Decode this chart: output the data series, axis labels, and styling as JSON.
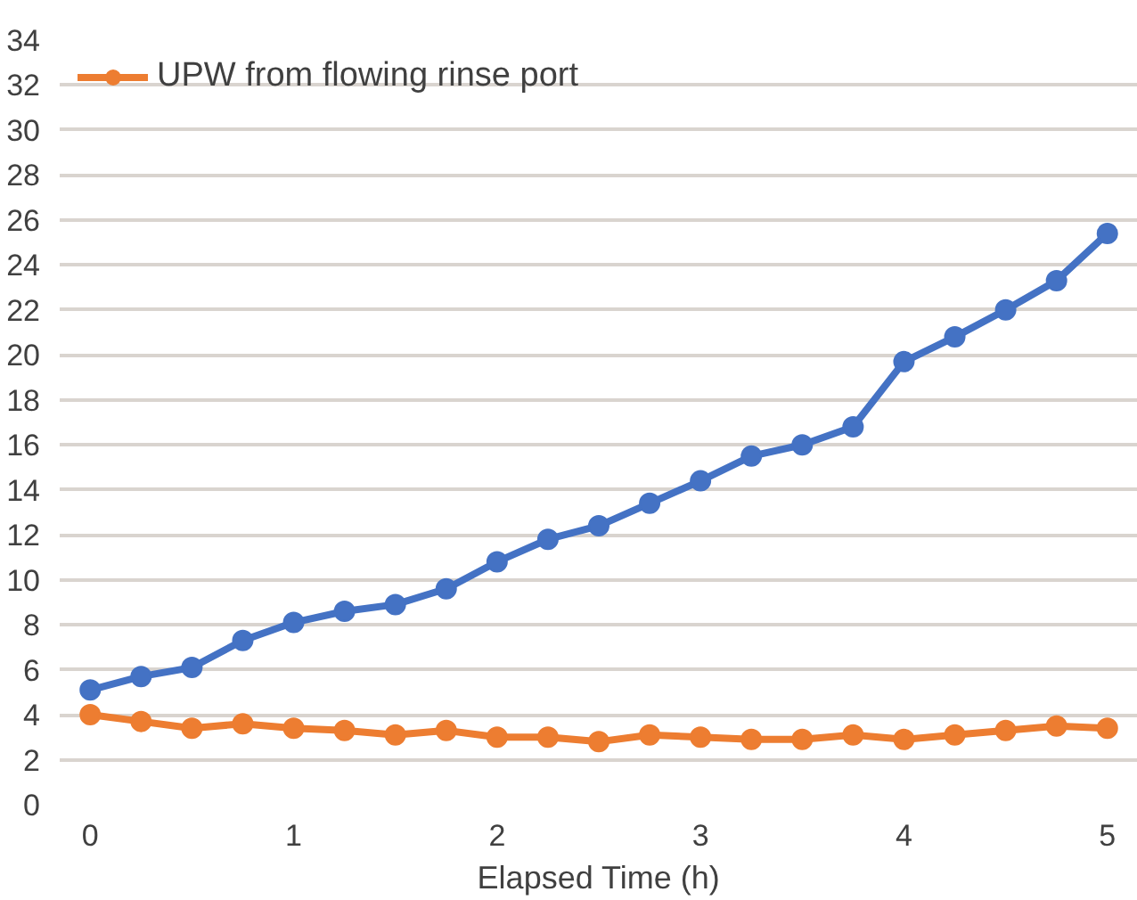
{
  "chart_data": {
    "type": "line",
    "xlabel": "Elapsed Time (h)",
    "x": [
      0,
      0.25,
      0.5,
      0.75,
      1,
      1.25,
      1.5,
      1.75,
      2,
      2.25,
      2.5,
      2.75,
      3,
      3.25,
      3.5,
      3.75,
      4,
      4.25,
      4.5,
      4.75,
      5
    ],
    "series": [
      {
        "color": "#4472c4",
        "values": [
          5.1,
          5.7,
          6.1,
          7.3,
          8.1,
          8.6,
          8.9,
          9.6,
          10.8,
          11.8,
          12.4,
          13.4,
          14.4,
          15.5,
          16.0,
          16.8,
          19.7,
          20.8,
          22.0,
          23.3,
          25.4
        ]
      },
      {
        "name": "UPW from flowing rinse port",
        "color": "#ed7d31",
        "values": [
          4.0,
          3.7,
          3.4,
          3.6,
          3.4,
          3.3,
          3.1,
          3.3,
          3.0,
          3.0,
          2.8,
          3.1,
          3.0,
          2.9,
          2.9,
          3.1,
          2.9,
          3.1,
          3.3,
          3.5,
          3.4
        ]
      }
    ],
    "xlim": [
      -0.15,
      5.15
    ],
    "xticks": [
      0,
      1,
      2,
      3,
      4,
      5
    ],
    "ylim": [
      0,
      34
    ],
    "yticks": [
      0,
      2,
      4,
      6,
      8,
      10,
      12,
      14,
      16,
      18,
      20,
      22,
      24,
      26,
      28,
      30,
      32,
      34
    ],
    "grid": "y",
    "legend": "top left",
    "marker": "circle",
    "line_style": "solid"
  }
}
